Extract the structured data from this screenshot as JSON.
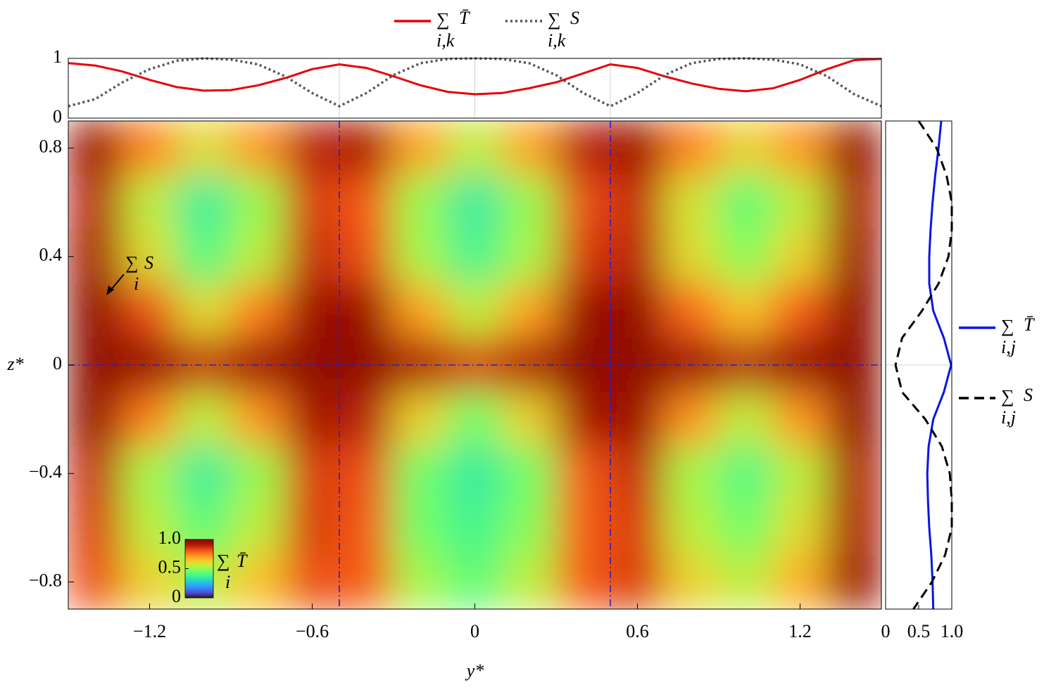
{
  "chart_data": [
    {
      "type": "line",
      "xlim": [
        -1.5,
        1.5
      ],
      "ylim": [
        0,
        1
      ],
      "yticks": [
        0,
        1
      ],
      "grid_x": [
        -0.5,
        0,
        0.5
      ],
      "x": [
        -1.5,
        -1.4,
        -1.3,
        -1.2,
        -1.1,
        -1.0,
        -0.9,
        -0.8,
        -0.7,
        -0.6,
        -0.5,
        -0.4,
        -0.3,
        -0.2,
        -0.1,
        0,
        0.1,
        0.2,
        0.3,
        0.4,
        0.5,
        0.6,
        0.7,
        0.8,
        0.9,
        1.0,
        1.1,
        1.2,
        1.3,
        1.4,
        1.5
      ],
      "series": [
        {
          "name": "T̄",
          "symbol": "∑",
          "subscript": "i,k",
          "color": "#e8000b",
          "style": "solid",
          "values": [
            0.92,
            0.88,
            0.78,
            0.64,
            0.52,
            0.46,
            0.47,
            0.55,
            0.67,
            0.82,
            0.9,
            0.84,
            0.7,
            0.55,
            0.44,
            0.4,
            0.42,
            0.5,
            0.6,
            0.75,
            0.9,
            0.84,
            0.7,
            0.58,
            0.49,
            0.45,
            0.5,
            0.64,
            0.82,
            0.97,
            0.99
          ]
        },
        {
          "name": "S",
          "symbol": "∑",
          "subscript": "i,k",
          "color": "#555555",
          "style": "dotted",
          "values": [
            0.2,
            0.32,
            0.6,
            0.82,
            0.96,
            1.0,
            0.98,
            0.9,
            0.7,
            0.42,
            0.2,
            0.42,
            0.72,
            0.92,
            0.99,
            1.0,
            0.99,
            0.92,
            0.72,
            0.42,
            0.2,
            0.42,
            0.72,
            0.92,
            0.99,
            1.0,
            0.98,
            0.9,
            0.7,
            0.4,
            0.2
          ]
        }
      ]
    },
    {
      "type": "heatmap",
      "xlabel": "y*",
      "ylabel": "z*",
      "xlim": [
        -1.5,
        1.5
      ],
      "ylim": [
        -0.9,
        0.9
      ],
      "xticks": [
        {
          "value": -1.2,
          "label": "−1.2"
        },
        {
          "value": -0.6,
          "label": "−0.6"
        },
        0,
        0.6,
        1.2
      ],
      "yticks": [
        {
          "value": -0.8,
          "label": "−0.8"
        },
        {
          "value": -0.4,
          "label": "−0.4"
        },
        0,
        0.4,
        0.8
      ],
      "reference_lines": {
        "x": [
          -0.5,
          0.5
        ],
        "y": [
          0
        ]
      },
      "x": [
        -1.4,
        -1.2,
        -1.0,
        -0.8,
        -0.6,
        -0.4,
        -0.2,
        0,
        0.2,
        0.4,
        0.6,
        0.8,
        1.0,
        1.2,
        1.4
      ],
      "y": [
        0.8,
        0.6,
        0.4,
        0.2,
        0,
        -0.2,
        -0.4,
        -0.6,
        -0.8
      ],
      "values": [
        [
          0.95,
          0.75,
          0.6,
          0.72,
          0.9,
          0.92,
          0.7,
          0.55,
          0.7,
          0.9,
          0.95,
          0.75,
          0.62,
          0.72,
          0.97
        ],
        [
          0.9,
          0.55,
          0.36,
          0.5,
          0.85,
          0.8,
          0.5,
          0.35,
          0.5,
          0.82,
          0.88,
          0.58,
          0.42,
          0.55,
          0.92
        ],
        [
          0.93,
          0.6,
          0.4,
          0.55,
          0.88,
          0.82,
          0.52,
          0.38,
          0.52,
          0.85,
          0.9,
          0.6,
          0.48,
          0.62,
          0.95
        ],
        [
          1.0,
          0.82,
          0.6,
          0.75,
          0.95,
          0.95,
          0.7,
          0.55,
          0.7,
          0.95,
          0.97,
          0.78,
          0.65,
          0.8,
          1.0
        ],
        [
          1.0,
          0.97,
          0.88,
          0.95,
          1.0,
          1.0,
          0.92,
          0.85,
          0.92,
          1.0,
          1.0,
          0.95,
          0.9,
          0.97,
          1.0
        ],
        [
          0.97,
          0.75,
          0.55,
          0.72,
          0.93,
          0.9,
          0.62,
          0.45,
          0.62,
          0.92,
          0.95,
          0.72,
          0.55,
          0.72,
          0.98
        ],
        [
          0.88,
          0.52,
          0.36,
          0.5,
          0.85,
          0.82,
          0.45,
          0.35,
          0.45,
          0.8,
          0.88,
          0.52,
          0.4,
          0.55,
          0.92
        ],
        [
          0.85,
          0.55,
          0.42,
          0.55,
          0.85,
          0.8,
          0.45,
          0.38,
          0.48,
          0.8,
          0.85,
          0.55,
          0.45,
          0.6,
          0.92
        ],
        [
          0.82,
          0.62,
          0.55,
          0.65,
          0.82,
          0.8,
          0.52,
          0.42,
          0.55,
          0.8,
          0.85,
          0.62,
          0.55,
          0.68,
          0.95
        ]
      ],
      "colorbar": {
        "symbol": "∑",
        "label": "T̄",
        "subscript": "i",
        "ticks": [
          0,
          0.5,
          {
            "value": 1,
            "label": "1.0"
          }
        ]
      },
      "annotation": {
        "symbol": "∑",
        "label": "S",
        "subscript": "i"
      }
    },
    {
      "type": "line",
      "orientation": "vertical",
      "xlim": [
        0,
        1
      ],
      "xticks": [
        0,
        0.5,
        {
          "value": 1,
          "label": "1.0"
        }
      ],
      "grid_y": [
        0
      ],
      "y": [
        0.9,
        0.8,
        0.7,
        0.6,
        0.5,
        0.4,
        0.3,
        0.2,
        0.1,
        0,
        -0.1,
        -0.2,
        -0.3,
        -0.4,
        -0.5,
        -0.6,
        -0.7,
        -0.8,
        -0.9
      ],
      "series": [
        {
          "name": "T̄",
          "symbol": "∑",
          "subscript": "i,j",
          "color": "#0a14e6",
          "style": "solid",
          "values": [
            0.84,
            0.8,
            0.75,
            0.71,
            0.68,
            0.66,
            0.66,
            0.72,
            0.88,
            0.99,
            0.88,
            0.72,
            0.65,
            0.63,
            0.64,
            0.66,
            0.69,
            0.71,
            0.72
          ]
        },
        {
          "name": "S",
          "symbol": "∑",
          "subscript": "i,j",
          "color": "#000000",
          "style": "dashed",
          "values": [
            0.5,
            0.77,
            0.92,
            1.0,
            1.0,
            0.95,
            0.8,
            0.55,
            0.25,
            0.15,
            0.25,
            0.6,
            0.85,
            0.97,
            1.0,
            1.0,
            0.9,
            0.7,
            0.42
          ]
        }
      ]
    }
  ]
}
